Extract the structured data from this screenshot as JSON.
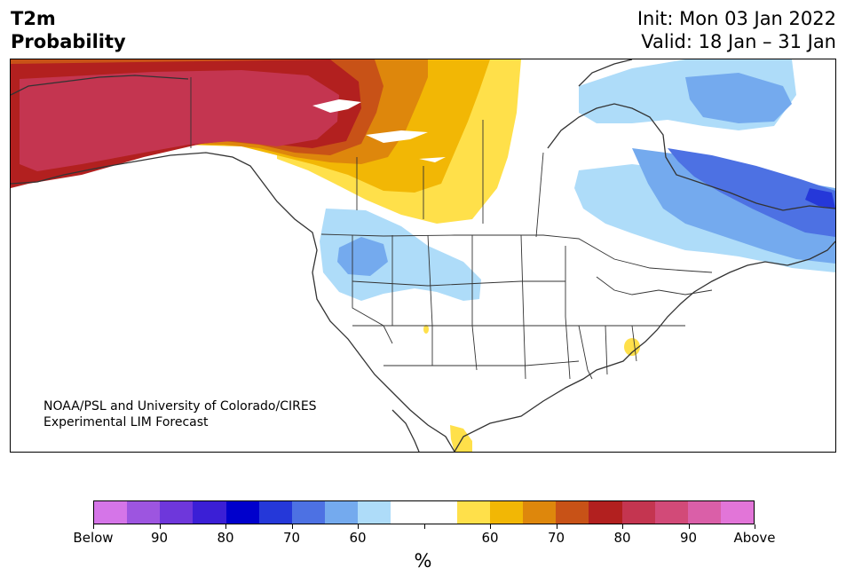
{
  "header": {
    "title_line1": "T2m",
    "title_line2": "Probability",
    "init": "Init: Mon 03 Jan 2022",
    "valid": "Valid: 18 Jan – 31 Jan"
  },
  "credit": {
    "line1": "NOAA/PSL and University of Colorado/CIRES",
    "line2": "Experimental LIM Forecast"
  },
  "colorbar": {
    "colors": [
      "#d575e8",
      "#9d55e0",
      "#6e37db",
      "#3b1fd6",
      "#0000cc",
      "#2538d9",
      "#4d71e3",
      "#74aaee",
      "#aedcf9",
      "#ffffff",
      "#ffffff",
      "#ffe04a",
      "#f2b705",
      "#de870c",
      "#c85217",
      "#b2201f",
      "#c43550",
      "#d24a78",
      "#da5fa8",
      "#e275d8"
    ],
    "tick_labels": [
      "Below",
      "90",
      "80",
      "70",
      "60",
      "",
      "60",
      "70",
      "80",
      "90",
      "Above"
    ],
    "unit": "%"
  },
  "map_colors": {
    "warm_deep": "#c43550",
    "warm_red": "#b2201f",
    "warm_rust": "#c85217",
    "warm_orange": "#de870c",
    "warm_amber": "#f2b705",
    "warm_yellow": "#ffe04a",
    "cool_pale": "#aedcf9",
    "cool_light": "#74aaee",
    "cool_mid": "#4d71e3",
    "cool_deep": "#2538d9",
    "outline": "#333333"
  }
}
